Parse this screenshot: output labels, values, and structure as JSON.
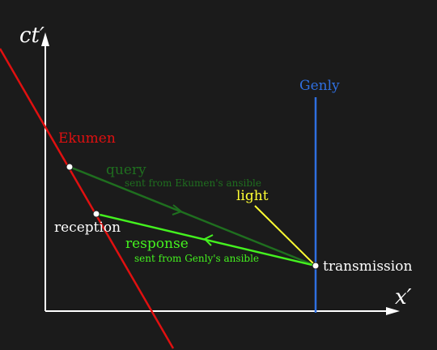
{
  "axes": {
    "y_label": "ct′",
    "x_label": "x′"
  },
  "labels": {
    "genly": "Genly",
    "ekumen": "Ekumen",
    "query": "query",
    "query_sub": "sent from Ekumen's ansible",
    "light": "light",
    "reception": "reception",
    "response": "response",
    "response_sub": "sent from Genly's ansible",
    "transmission": "transmission"
  },
  "colors": {
    "background": "#1b1b1b",
    "axes": "#ffffff",
    "ekumen": "#e01010",
    "genly": "#2f6fe0",
    "query": "#1f6f1f",
    "response": "#44f21f",
    "light": "#ffff33",
    "point": "#ffffff"
  },
  "icons": {
    "x_axis_arrow": "arrowhead-right-icon",
    "y_axis_arrow": "arrowhead-up-icon",
    "query_direction": "chevron-right-icon",
    "response_direction": "chevron-left-icon"
  }
}
